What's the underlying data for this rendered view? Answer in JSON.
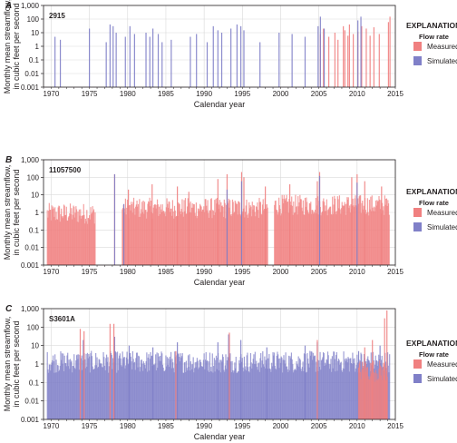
{
  "colors": {
    "measured": "#f08080",
    "simulated": "#8080c8",
    "grid": "#d9d9d9",
    "axis": "#231f20"
  },
  "chart_data": [
    {
      "type": "bar",
      "panel": "A",
      "station": "2915",
      "xlabel": "Calendar year",
      "ylabel": [
        "Monthly mean streamflow,",
        "in cubic feet per second"
      ],
      "xlim": [
        1969,
        2015
      ],
      "ylim": [
        0.001,
        1000
      ],
      "yscale": "log",
      "xticks": [
        1970,
        1975,
        1980,
        1985,
        1990,
        1995,
        2000,
        2005,
        2010,
        2015
      ],
      "ytick_labels": [
        "0.001",
        "0.01",
        "0.1",
        "1",
        "10",
        "100",
        "1,000"
      ],
      "grid": true,
      "legend": {
        "title": "EXPLANATION",
        "subtitle": "Flow rate",
        "position": "right",
        "items": [
          "Measured",
          "Simulated"
        ]
      },
      "series": [
        {
          "name": "Measured",
          "points": [
            [
              2005.2,
              8
            ],
            [
              2005.6,
              20
            ],
            [
              2006.3,
              5
            ],
            [
              2007.1,
              10
            ],
            [
              2007.5,
              3
            ],
            [
              2008.2,
              30
            ],
            [
              2008.4,
              15
            ],
            [
              2008.8,
              6
            ],
            [
              2009.0,
              40
            ],
            [
              2009.5,
              8
            ],
            [
              2010.1,
              12
            ],
            [
              2010.6,
              30
            ],
            [
              2011.2,
              20
            ],
            [
              2011.7,
              6
            ],
            [
              2012.2,
              25
            ],
            [
              2012.9,
              8
            ],
            [
              2014.1,
              60
            ],
            [
              2014.3,
              150
            ]
          ]
        },
        {
          "name": "Simulated",
          "points": [
            [
              1970.5,
              5
            ],
            [
              1971.2,
              3
            ],
            [
              1975.0,
              20
            ],
            [
              1977.2,
              2
            ],
            [
              1977.7,
              40
            ],
            [
              1978.1,
              30
            ],
            [
              1978.5,
              10
            ],
            [
              1979.7,
              5
            ],
            [
              1980.3,
              30
            ],
            [
              1980.9,
              8
            ],
            [
              1982.4,
              10
            ],
            [
              1982.9,
              5
            ],
            [
              1983.3,
              20
            ],
            [
              1984.0,
              8
            ],
            [
              1984.5,
              2
            ],
            [
              1985.7,
              3
            ],
            [
              1988.2,
              5
            ],
            [
              1989.0,
              8
            ],
            [
              1990.4,
              2
            ],
            [
              1991.2,
              30
            ],
            [
              1991.8,
              15
            ],
            [
              1992.3,
              10
            ],
            [
              1993.5,
              20
            ],
            [
              1994.3,
              40
            ],
            [
              1994.8,
              30
            ],
            [
              1995.2,
              15
            ],
            [
              1997.3,
              2
            ],
            [
              1999.8,
              10
            ],
            [
              2001.5,
              8
            ],
            [
              2003.2,
              5
            ],
            [
              2004.9,
              30
            ],
            [
              2005.2,
              150
            ],
            [
              2005.7,
              20
            ],
            [
              2010.1,
              80
            ],
            [
              2010.5,
              150
            ]
          ]
        }
      ]
    },
    {
      "type": "bar",
      "panel": "B",
      "station": "11057500",
      "xlabel": "Calendar year",
      "ylabel": [
        "Monthly mean streamflow,",
        "in cubic feet per second"
      ],
      "xlim": [
        1969,
        2015
      ],
      "ylim": [
        0.001,
        1000
      ],
      "yscale": "log",
      "xticks": [
        1970,
        1975,
        1980,
        1985,
        1990,
        1995,
        2000,
        2005,
        2010,
        2015
      ],
      "ytick_labels": [
        "0.001",
        "0.01",
        "0.1",
        "1",
        "10",
        "100",
        "1,000"
      ],
      "grid": true,
      "legend": {
        "title": "EXPLANATION",
        "subtitle": "Flow rate",
        "position": "right",
        "items": [
          "Measured",
          "Simulated"
        ]
      },
      "series": [
        {
          "name": "Measured",
          "segments": [
            {
              "from": 1969.5,
              "to": 1975.8,
              "level": 1.0
            },
            {
              "from": 1979.3,
              "to": 1998.3,
              "level": 2.0
            },
            {
              "from": 1999.2,
              "to": 2014.2,
              "level": 3.0
            }
          ],
          "peaks": [
            [
              1978.3,
              150
            ],
            [
              1980.1,
              20
            ],
            [
              1983.2,
              40
            ],
            [
              1986.5,
              30
            ],
            [
              1988.0,
              15
            ],
            [
              1991.8,
              80
            ],
            [
              1993.0,
              150
            ],
            [
              1994.9,
              200
            ],
            [
              1995.2,
              100
            ],
            [
              1998.0,
              30
            ],
            [
              2001.2,
              40
            ],
            [
              2004.8,
              60
            ],
            [
              2005.1,
              200
            ],
            [
              2009.3,
              100
            ],
            [
              2010.0,
              150
            ],
            [
              2011.0,
              60
            ],
            [
              2013.2,
              30
            ]
          ]
        },
        {
          "name": "Simulated",
          "points": [
            [
              1978.3,
              150
            ],
            [
              1979.5,
              3
            ],
            [
              1993.0,
              20
            ],
            [
              1994.9,
              60
            ],
            [
              2005.1,
              120
            ],
            [
              2010.0,
              50
            ]
          ]
        }
      ]
    },
    {
      "type": "bar",
      "panel": "C",
      "station": "S3601A",
      "xlabel": "Calendar year",
      "ylabel": [
        "Monthly mean streamflow,",
        "in cubic feet per second"
      ],
      "xlim": [
        1969,
        2015
      ],
      "ylim": [
        0.001,
        1000
      ],
      "yscale": "log",
      "xticks": [
        1970,
        1975,
        1980,
        1985,
        1990,
        1995,
        2000,
        2005,
        2010,
        2015
      ],
      "ytick_labels": [
        "0.001",
        "0.01",
        "0.1",
        "1",
        "10",
        "100",
        "1,000"
      ],
      "grid": true,
      "legend": {
        "title": "EXPLANATION",
        "subtitle": "Flow rate",
        "position": "right",
        "items": [
          "Measured",
          "Simulated"
        ]
      },
      "series": [
        {
          "name": "Simulated",
          "segments": [
            {
              "from": 1969.5,
              "to": 2014.3,
              "level": 1.5
            }
          ],
          "peaks": [
            [
              1974.2,
              20
            ],
            [
              1978.3,
              30
            ],
            [
              1980.2,
              10
            ],
            [
              1983.3,
              8
            ],
            [
              1986.5,
              15
            ],
            [
              1991.8,
              15
            ],
            [
              1993.2,
              40
            ],
            [
              1994.8,
              20
            ],
            [
              1998.2,
              8
            ],
            [
              2003.2,
              10
            ],
            [
              2004.8,
              15
            ],
            [
              2010.2,
              5
            ],
            [
              2013.0,
              10
            ]
          ]
        },
        {
          "name": "Measured",
          "segments": [
            {
              "from": 2010.2,
              "to": 2014.0,
              "level": 0.5
            }
          ],
          "peaks": [
            [
              1973.8,
              80
            ],
            [
              1974.3,
              60
            ],
            [
              1977.7,
              150
            ],
            [
              1978.2,
              150
            ],
            [
              1986.3,
              5
            ],
            [
              1993.3,
              50
            ],
            [
              2004.8,
              20
            ],
            [
              2011.0,
              8
            ],
            [
              2012.0,
              20
            ],
            [
              2013.6,
              300
            ],
            [
              2013.9,
              800
            ]
          ]
        }
      ]
    }
  ]
}
